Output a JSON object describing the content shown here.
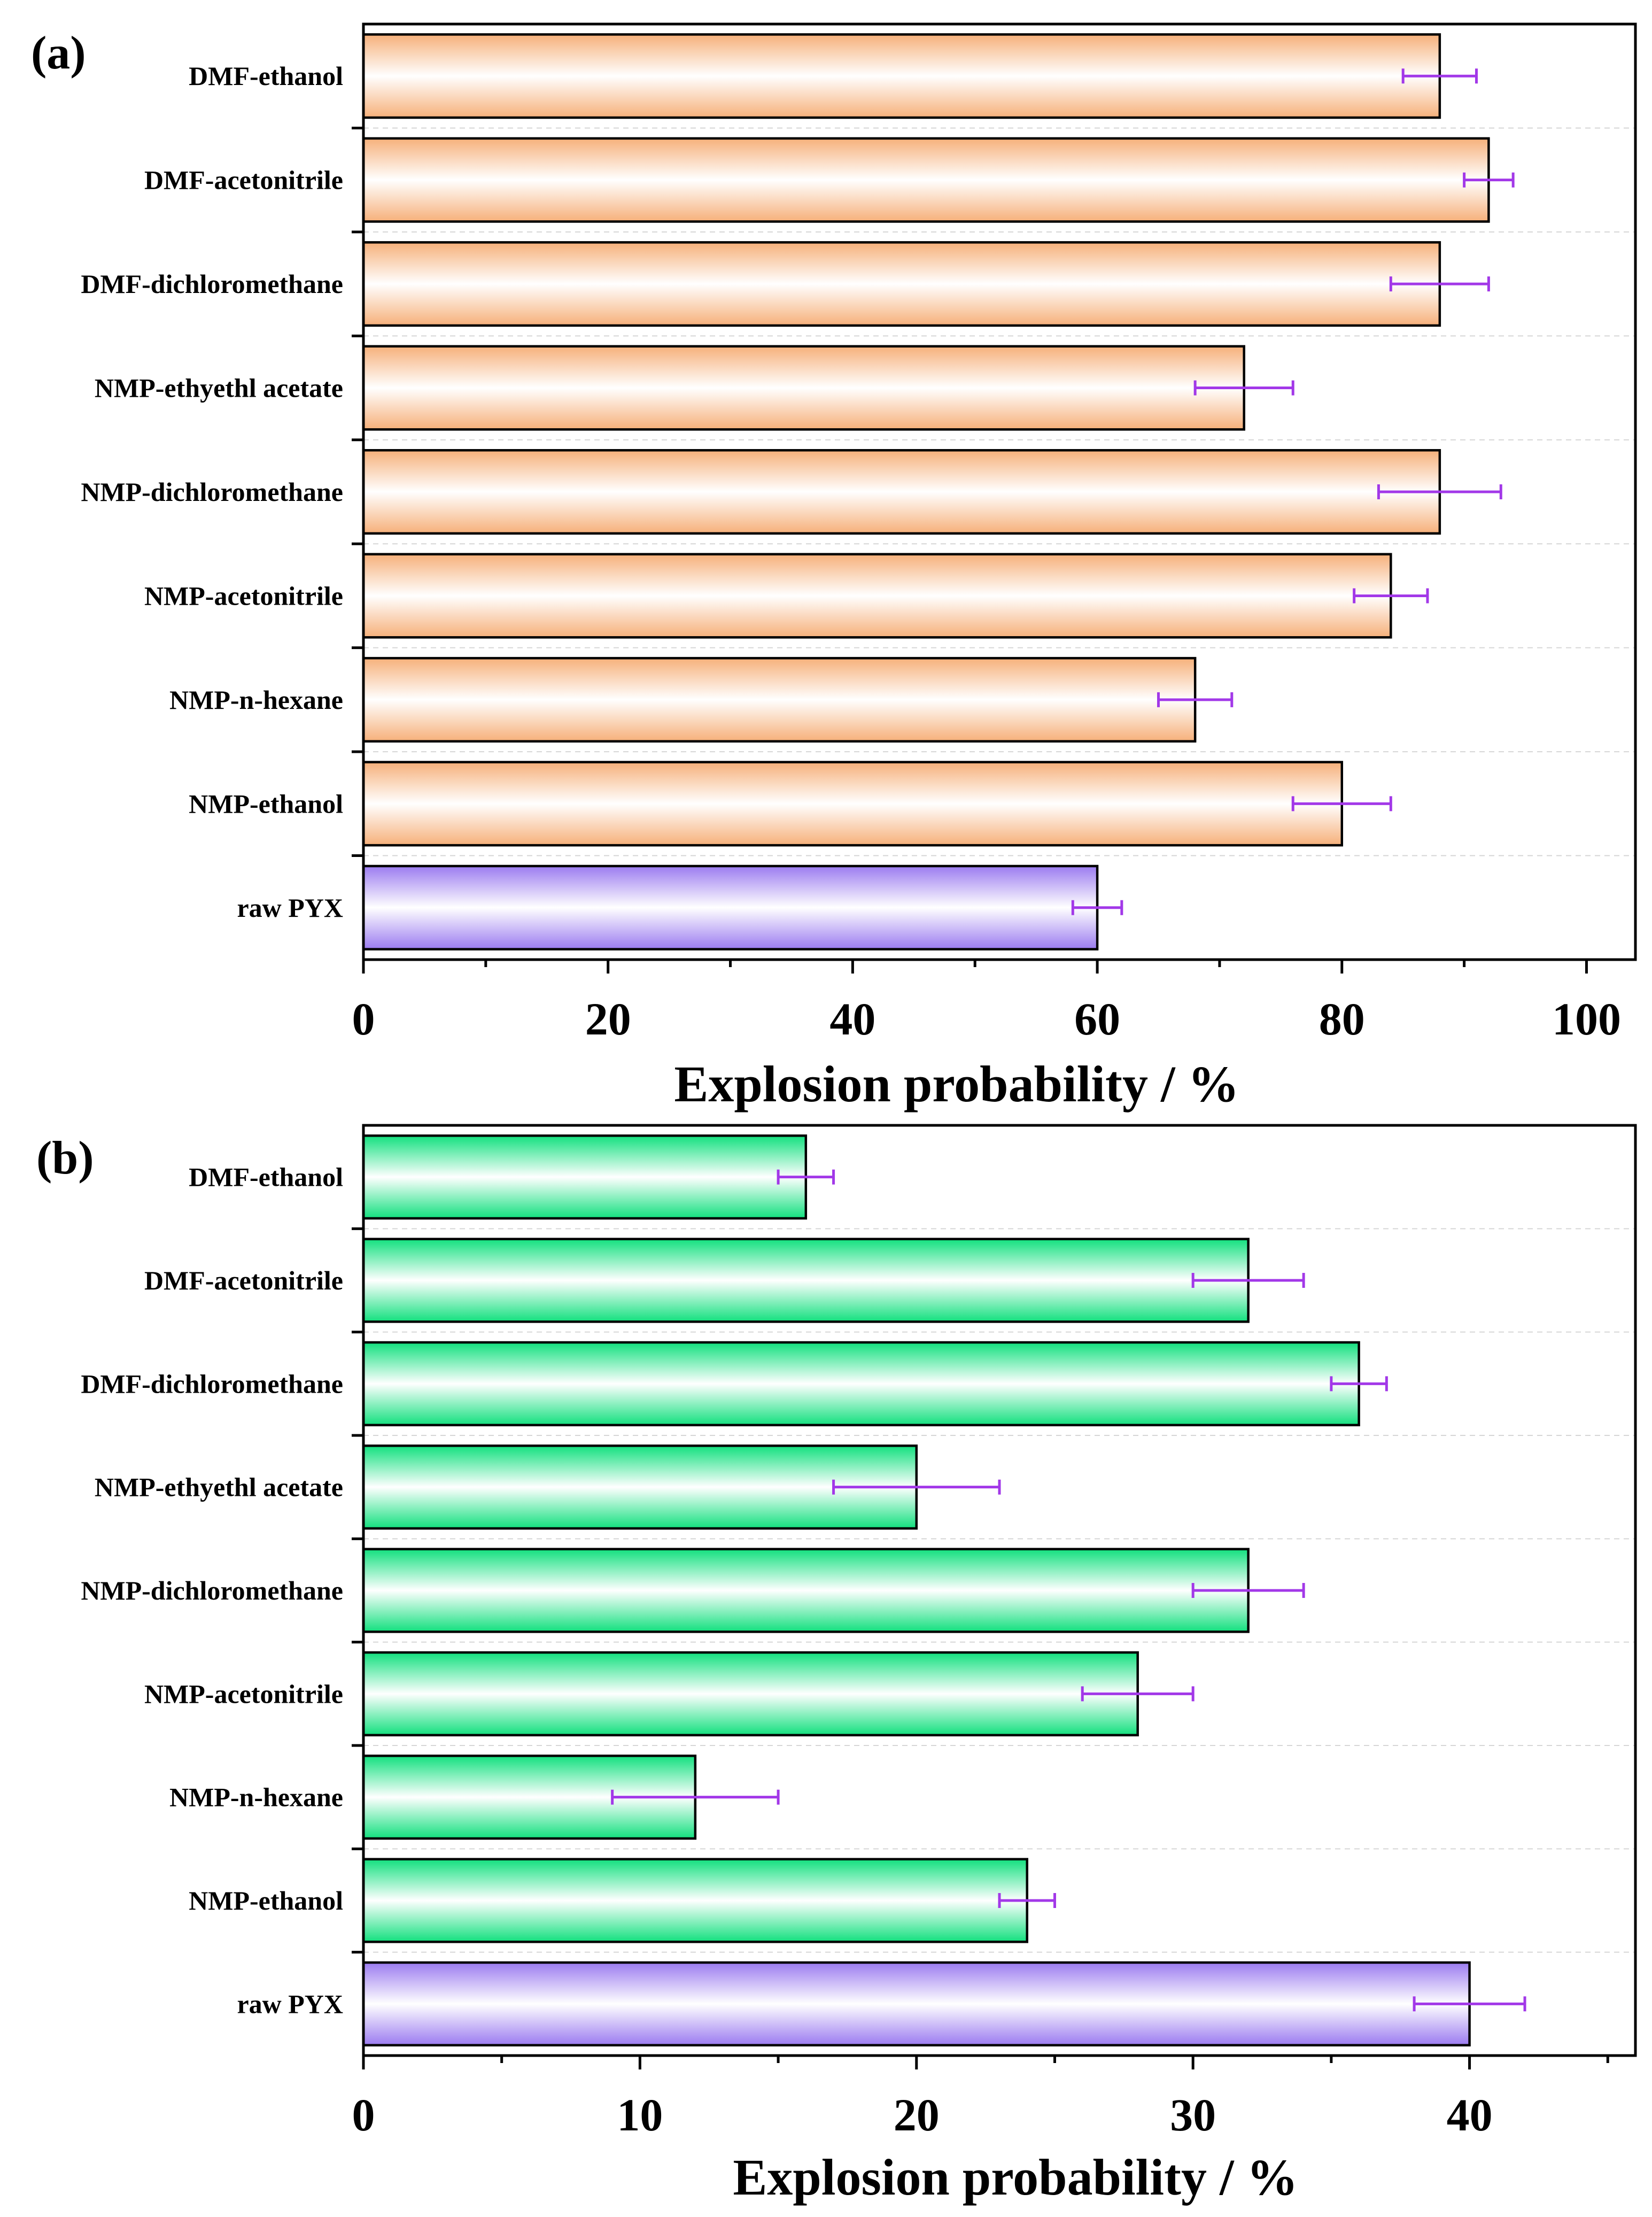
{
  "chart_data": [
    {
      "type": "bar",
      "orientation": "horizontal",
      "panel_label": "(a)",
      "categories": [
        "DMF-ethanol",
        "DMF-acetonitrile",
        "DMF-dichloromethane",
        "NMP-ethyethl acetate",
        "NMP-dichloromethane",
        "NMP-acetonitrile",
        "NMP-n-hexane",
        "NMP-ethanol",
        "raw PYX"
      ],
      "values": [
        88,
        92,
        88,
        72,
        88,
        84,
        68,
        80,
        60
      ],
      "errors": [
        3,
        2,
        4,
        4,
        5,
        3,
        3,
        4,
        2
      ],
      "xlabel": "Explosion probability / %",
      "xlim": [
        0,
        104
      ],
      "xticks": [
        0,
        20,
        40,
        60,
        80,
        100
      ],
      "grid": "horizontal dashed",
      "colors": {
        "bar": "#f6b07a",
        "highlight_bar": "#9b7bf0",
        "error_bar": "#a238e8"
      }
    },
    {
      "type": "bar",
      "orientation": "horizontal",
      "panel_label": "(b)",
      "categories": [
        "DMF-ethanol",
        "DMF-acetonitrile",
        "DMF-dichloromethane",
        "NMP-ethyethl acetate",
        "NMP-dichloromethane",
        "NMP-acetonitrile",
        "NMP-n-hexane",
        "NMP-ethanol",
        "raw PYX"
      ],
      "values": [
        16,
        32,
        36,
        20,
        32,
        28,
        12,
        24,
        40
      ],
      "errors": [
        1,
        2,
        1,
        3,
        2,
        2,
        3,
        1,
        2
      ],
      "xlabel": "Explosion probability / %",
      "xlim": [
        0,
        46
      ],
      "xticks": [
        0,
        10,
        20,
        30,
        40
      ],
      "grid": "horizontal dashed",
      "colors": {
        "bar": "#12e07e",
        "highlight_bar": "#9b7bf0",
        "error_bar": "#a238e8"
      }
    }
  ]
}
